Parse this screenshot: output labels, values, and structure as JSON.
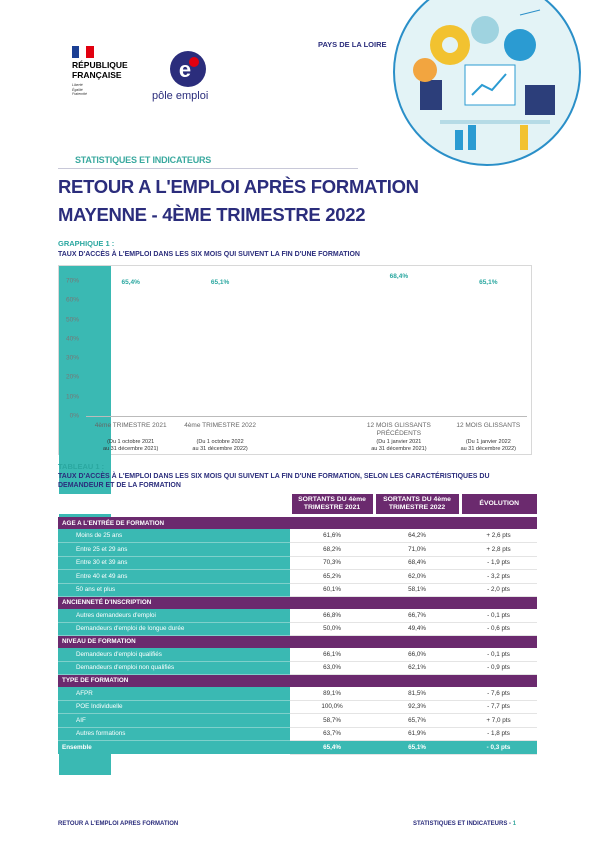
{
  "header": {
    "region": "PAYS DE LA LOIRE",
    "republic": [
      "RÉPUBLIQUE",
      "FRANÇAISE"
    ],
    "motto": [
      "Liberté",
      "Égalité",
      "Fraternité"
    ],
    "brand": "pôle emploi",
    "section": "STATISTIQUES ET INDICATEURS"
  },
  "title": [
    "RETOUR A L'EMPLOI APRÈS FORMATION",
    "MAYENNE -  4ÈME TRIMESTRE 2022"
  ],
  "chart_data": {
    "type": "bar",
    "title": "GRAPHIQUE 1 :",
    "subtitle": "TAUX D'ACCÈS À L'EMPLOI DANS LES SIX MOIS QUI SUIVENT LA FIN D'UNE FORMATION",
    "categories": [
      "4ème TRIMESTRE 2021",
      "4ème TRIMESTRE 2022",
      null,
      "12 MOIS GLISSANTS PRÉCÉDENTS",
      "12 MOIS GLISSANTS"
    ],
    "category_notes": [
      [
        "(Du 1 octobre 2021",
        "au 31 décembre 2021)"
      ],
      [
        "(Du 1 octobre 2022",
        "au 31 décembre 2022)"
      ],
      null,
      [
        "(Du 1 janvier 2021",
        "au 31 décembre 2021)"
      ],
      [
        "(Du 1 janvier 2022",
        "au 31 décembre 2022)"
      ]
    ],
    "values": [
      65.4,
      65.1,
      null,
      68.4,
      65.1
    ],
    "value_labels": [
      "65,4%",
      "65,1%",
      null,
      "68,4%",
      "65,1%"
    ],
    "color": "#3ab9b3",
    "ylim": [
      0,
      70
    ],
    "yticks": [
      {
        "value": 0,
        "label": "0%"
      },
      {
        "value": 10,
        "label": "10%"
      },
      {
        "value": 20,
        "label": "20%"
      },
      {
        "value": 30,
        "label": "30%"
      },
      {
        "value": 40,
        "label": "40%"
      },
      {
        "value": 50,
        "label": "50%"
      },
      {
        "value": 60,
        "label": "60%"
      },
      {
        "value": 70,
        "label": "70%"
      }
    ],
    "grid": false
  },
  "table": {
    "title": "TABLEAU 1 :",
    "subtitle": "TAUX D'ACCÈS À L'EMPLOI DANS LES SIX MOIS QUI SUIVENT LA FIN D'UNE FORMATION, SELON LES CARACTÉRISTIQUES DU DEMANDEUR ET DE LA FORMATION",
    "columns": [
      "SORTANTS DU 4ème TRIMESTRE 2021",
      "SORTANTS DU 4ème TRIMESTRE 2022",
      "ÉVOLUTION"
    ],
    "groups": [
      {
        "title": "AGE A L'ENTRÉE DE FORMATION",
        "rows": [
          [
            "Moins de 25 ans",
            "61,6%",
            "64,2%",
            "+ 2,6 pts"
          ],
          [
            "Entre 25 et 29 ans",
            "68,2%",
            "71,0%",
            "+ 2,8 pts"
          ],
          [
            "Entre 30 et 39 ans",
            "70,3%",
            "68,4%",
            "- 1,9 pts"
          ],
          [
            "Entre 40 et 49 ans",
            "65,2%",
            "62,0%",
            "- 3,2 pts"
          ],
          [
            "50 ans et plus",
            "60,1%",
            "58,1%",
            "- 2,0 pts"
          ]
        ]
      },
      {
        "title": "ANCIENNETÉ D'INSCRIPTION",
        "rows": [
          [
            "Autres demandeurs d'emploi",
            "66,8%",
            "66,7%",
            "- 0,1 pts"
          ],
          [
            "Demandeurs d'emploi de longue durée",
            "50,0%",
            "49,4%",
            "- 0,6 pts"
          ]
        ]
      },
      {
        "title": "NIVEAU DE FORMATION",
        "rows": [
          [
            "Demandeurs d'emploi qualifiés",
            "66,1%",
            "66,0%",
            "- 0,1 pts"
          ],
          [
            "Demandeurs d'emploi non qualifiés",
            "63,0%",
            "62,1%",
            "- 0,9 pts"
          ]
        ]
      },
      {
        "title": "TYPE DE FORMATION",
        "rows": [
          [
            "AFPR",
            "89,1%",
            "81,5%",
            "- 7,6 pts"
          ],
          [
            "POE Individuelle",
            "100,0%",
            "92,3%",
            "- 7,7 pts"
          ],
          [
            "AIF",
            "58,7%",
            "65,7%",
            "+ 7,0 pts"
          ],
          [
            "Autres formations",
            "63,7%",
            "61,9%",
            "- 1,8 pts"
          ]
        ]
      }
    ],
    "total": [
      "Ensemble",
      "65,4%",
      "65,1%",
      "- 0,3 pts"
    ]
  },
  "footer": {
    "left": "RETOUR A L'EMPLOI APRES FORMATION",
    "right": "STATISTIQUES ET INDICATEURS -",
    "page": "1"
  }
}
